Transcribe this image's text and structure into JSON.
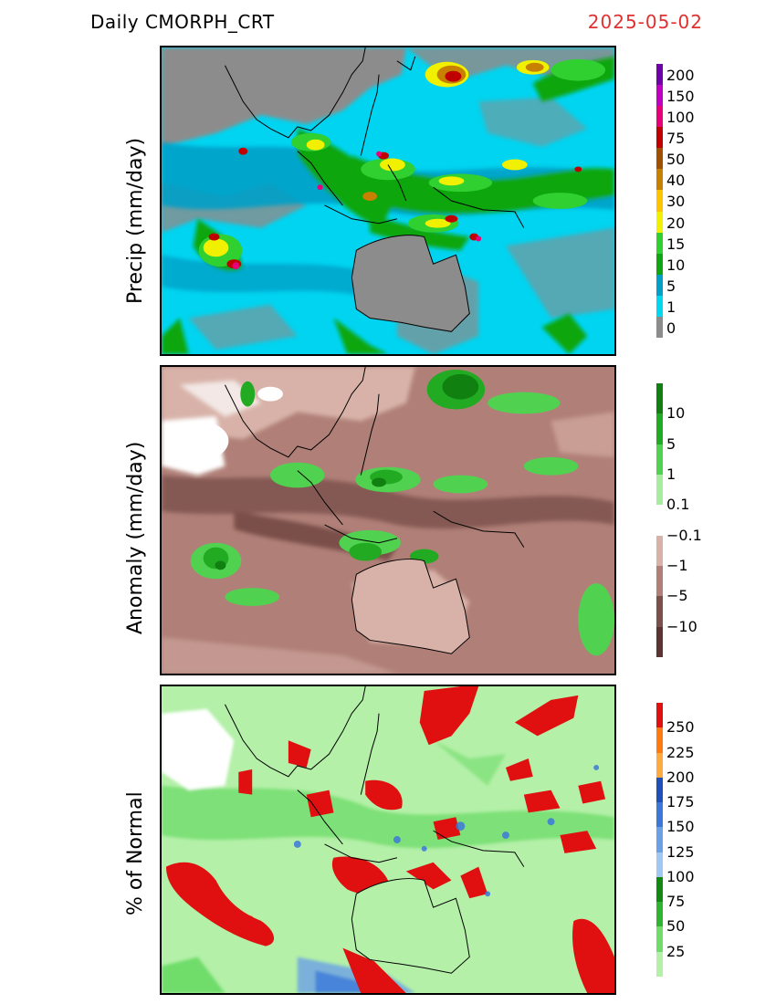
{
  "header": {
    "product": "Daily  CMORPH_CRT",
    "date": "2025-05-02",
    "date_color": "#e03030"
  },
  "panels": [
    {
      "id": "precip",
      "ylabel": "Precip  (mm/day)",
      "colorbar": {
        "colors": [
          "#8c8c8c",
          "#00d7f0",
          "#00a0c8",
          "#11a611",
          "#2fd02f",
          "#f0f000",
          "#ffc400",
          "#c88000",
          "#a05000",
          "#c00000",
          "#e6007a",
          "#c000c0",
          "#7000a8"
        ],
        "labels": [
          "0",
          "1",
          "5",
          "10",
          "15",
          "20",
          "30",
          "40",
          "50",
          "75",
          "100",
          "150",
          "200"
        ]
      }
    },
    {
      "id": "anomaly",
      "ylabel": "Anomaly  (mm/day)",
      "colorbar": {
        "colors": [
          "#5a3430",
          "#7a504a",
          "#b08078",
          "#d8b2a8",
          "#ffffff",
          "#a8eca0",
          "#50d250",
          "#22aa22",
          "#108010"
        ],
        "labels": [
          "−10",
          "−5",
          "−1",
          "−0.1",
          "0.1",
          "1",
          "5",
          "10"
        ]
      }
    },
    {
      "id": "percent",
      "ylabel": "%  of  Normal",
      "colorbar": {
        "colors": [
          "#b4f0a8",
          "#70dc6a",
          "#2eb42e",
          "#108a10",
          "#a0c8f0",
          "#6aa0e6",
          "#3c78d8",
          "#1e50b8",
          "#ffaa40",
          "#ff7a10",
          "#e01010"
        ],
        "labels": [
          "25",
          "50",
          "75",
          "100",
          "125",
          "150",
          "175",
          "200",
          "225",
          "250"
        ]
      }
    }
  ]
}
